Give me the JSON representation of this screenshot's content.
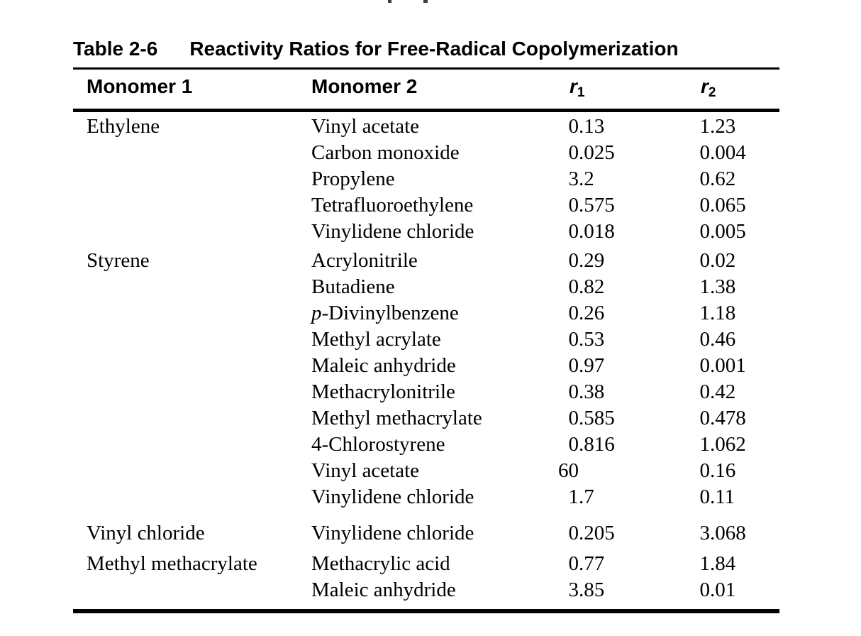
{
  "page": {
    "background": "#ffffff",
    "text_color": "#000000",
    "top_edge_artifact": "bottoms of two characters from a line cut off at the top edge"
  },
  "table": {
    "label": "Table 2-6",
    "title": "Reactivity Ratios for Free-Radical Copolymerization",
    "columns": [
      {
        "label": "Monomer 1"
      },
      {
        "label": "Monomer 2"
      },
      {
        "base": "r",
        "sub": "1"
      },
      {
        "base": "r",
        "sub": "2"
      }
    ],
    "groups": [
      {
        "monomer1": "Ethylene",
        "rows": [
          {
            "monomer2": "Vinyl acetate",
            "r1": "0.13",
            "r2": "1.23"
          },
          {
            "monomer2": "Carbon monoxide",
            "r1": "0.025",
            "r2": "0.004"
          },
          {
            "monomer2": "Propylene",
            "r1": "3.2",
            "r2": "0.62"
          },
          {
            "monomer2": "Tetrafluoroethylene",
            "r1": "0.575",
            "r2": "0.065"
          },
          {
            "monomer2": "Vinylidene chloride",
            "r1": "0.018",
            "r2": "0.005"
          }
        ]
      },
      {
        "monomer1": "Styrene",
        "rows": [
          {
            "monomer2": "Acrylonitrile",
            "r1": "0.29",
            "r2": "0.02"
          },
          {
            "monomer2": "Butadiene",
            "r1": "0.82",
            "r2": "1.38"
          },
          {
            "monomer2": "p-Divinylbenzene",
            "italic_first_char": true,
            "r1": "0.26",
            "r2": "1.18"
          },
          {
            "monomer2": "Methyl acrylate",
            "r1": "0.53",
            "r2": "0.46"
          },
          {
            "monomer2": "Maleic anhydride",
            "r1": "0.97",
            "r2": "0.001"
          },
          {
            "monomer2": "Methacrylonitrile",
            "r1": "0.38",
            "r2": "0.42"
          },
          {
            "monomer2": "Methyl methacrylate",
            "r1": "0.585",
            "r2": "0.478"
          },
          {
            "monomer2": "4-Chlorostyrene",
            "r1": "0.816",
            "r2": "1.062"
          },
          {
            "monomer2": "Vinyl acetate",
            "r1": "60",
            "r2": "0.16"
          },
          {
            "monomer2": "Vinylidene chloride",
            "r1": "1.7",
            "r2": "0.11"
          }
        ]
      },
      {
        "monomer1": "Vinyl chloride",
        "rows": [
          {
            "monomer2": "Vinylidene chloride",
            "r1": "0.205",
            "r2": "3.068"
          }
        ]
      },
      {
        "monomer1": "Methyl methacrylate",
        "rows": [
          {
            "monomer2": "Methacrylic acid",
            "r1": "0.77",
            "r2": "1.84"
          },
          {
            "monomer2": "Maleic anhydride",
            "r1": "3.85",
            "r2": "0.01"
          }
        ]
      }
    ]
  }
}
